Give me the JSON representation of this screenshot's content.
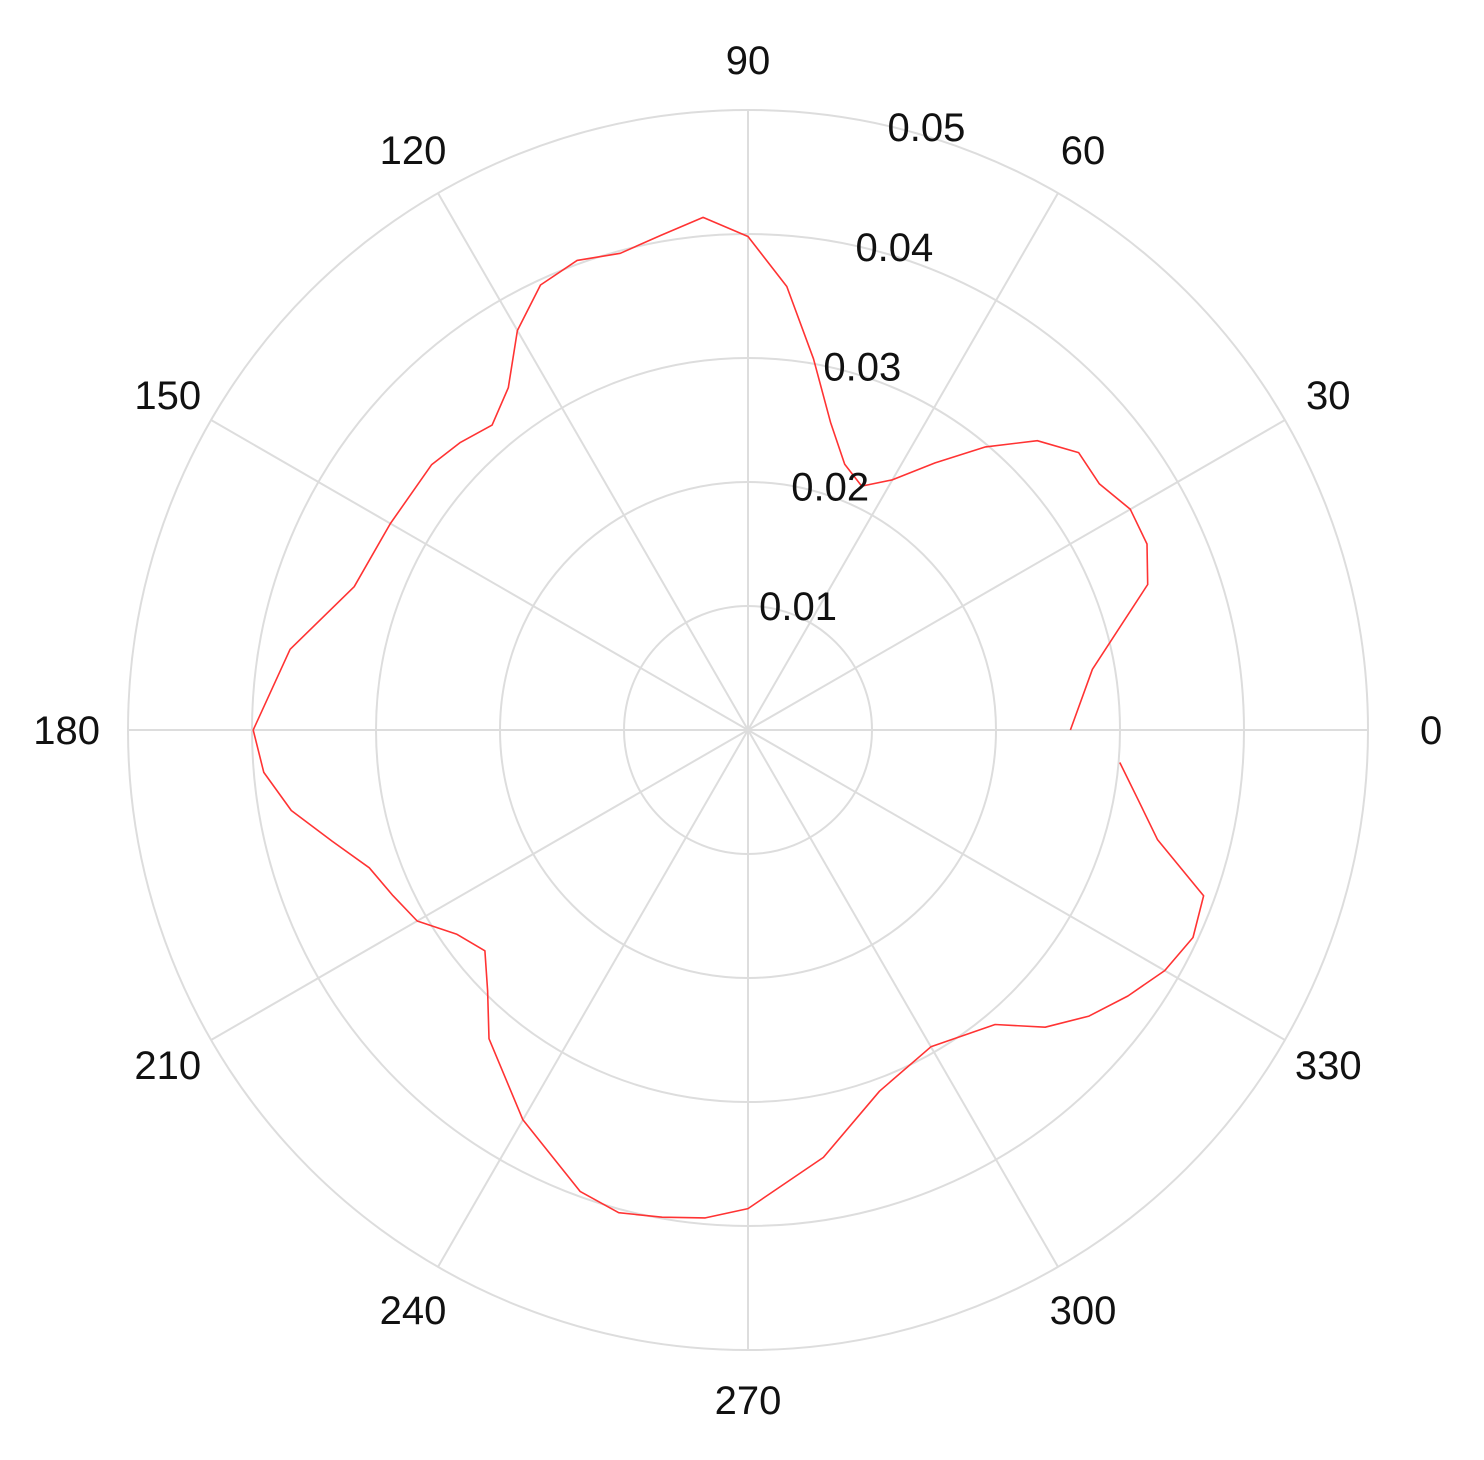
{
  "chart_data": {
    "type": "polar-line",
    "theta_unit": "degrees",
    "angular_tick_labels": [
      "0",
      "30",
      "60",
      "90",
      "120",
      "150",
      "180",
      "210",
      "240",
      "270",
      "300",
      "330"
    ],
    "angular_ticks": [
      0,
      30,
      60,
      90,
      120,
      150,
      180,
      210,
      240,
      270,
      300,
      330
    ],
    "radial_tick_labels": [
      "0.01",
      "0.02",
      "0.03",
      "0.04",
      "0.05"
    ],
    "radial_ticks": [
      0.01,
      0.02,
      0.03,
      0.04,
      0.05
    ],
    "rlim": [
      0,
      0.05
    ],
    "grid": true,
    "color": "#ff3333",
    "series": [
      {
        "theta": [
          0,
          10,
          20,
          25,
          30,
          35,
          40,
          45,
          50,
          55,
          60,
          65,
          70,
          75,
          80,
          85,
          90,
          95,
          100,
          105,
          110,
          115,
          120,
          125,
          130,
          135,
          140,
          150,
          160,
          170,
          180,
          185,
          190,
          195,
          200,
          205,
          210,
          215,
          220,
          225,
          230,
          240,
          250,
          255,
          260,
          265,
          270,
          280,
          290,
          300,
          310,
          315,
          320,
          325,
          330,
          335,
          340,
          345,
          350,
          355
        ],
        "r": [
          0.026,
          0.0282,
          0.0343,
          0.0355,
          0.0356,
          0.0346,
          0.0348,
          0.033,
          0.0298,
          0.0263,
          0.0233,
          0.0217,
          0.0228,
          0.0257,
          0.0304,
          0.0359,
          0.0398,
          0.0415,
          0.0405,
          0.0398,
          0.0403,
          0.0396,
          0.0372,
          0.0337,
          0.0321,
          0.0328,
          0.0333,
          0.0333,
          0.0338,
          0.0375,
          0.0399,
          0.0392,
          0.0374,
          0.0347,
          0.0325,
          0.0316,
          0.0308,
          0.0287,
          0.0277,
          0.0297,
          0.0325,
          0.0363,
          0.0396,
          0.0403,
          0.0399,
          0.0395,
          0.0386,
          0.035,
          0.031,
          0.0295,
          0.031,
          0.0339,
          0.0359,
          0.0374,
          0.0388,
          0.0396,
          0.0391,
          0.0342,
          0.0319,
          0.0301
        ]
      }
    ]
  }
}
